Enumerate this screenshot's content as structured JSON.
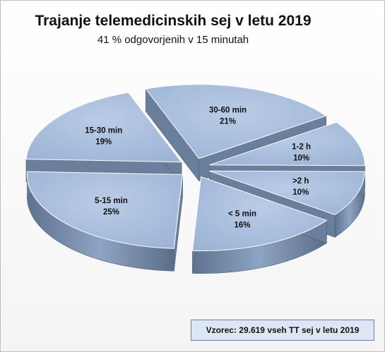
{
  "chart_data": {
    "type": "pie",
    "title": "Trajanje telemedicinskih sej v letu 2019",
    "subtitle": "41 % odgovorjenih v 15 minutah",
    "slices": [
      {
        "label": "30-60 min",
        "value_label": "21%",
        "value": 21
      },
      {
        "label": "1-2 h",
        "value_label": "10%",
        "value": 10
      },
      {
        "label": ">2 h",
        "value_label": "10%",
        "value": 10
      },
      {
        "label": "< 5 min",
        "value_label": "16%",
        "value": 16
      },
      {
        "label": "5-15 min",
        "value_label": "25%",
        "value": 25
      },
      {
        "label": "15-30 min",
        "value_label": "19%",
        "value": 19
      }
    ],
    "exploded": true,
    "style": "3d",
    "colors": {
      "top": "#a9bfde",
      "side": "#6a7f9c",
      "edge": "#4f5f78"
    }
  },
  "sample_note": "Vzorec:  29.619  vseh TT sej v letu 2019"
}
